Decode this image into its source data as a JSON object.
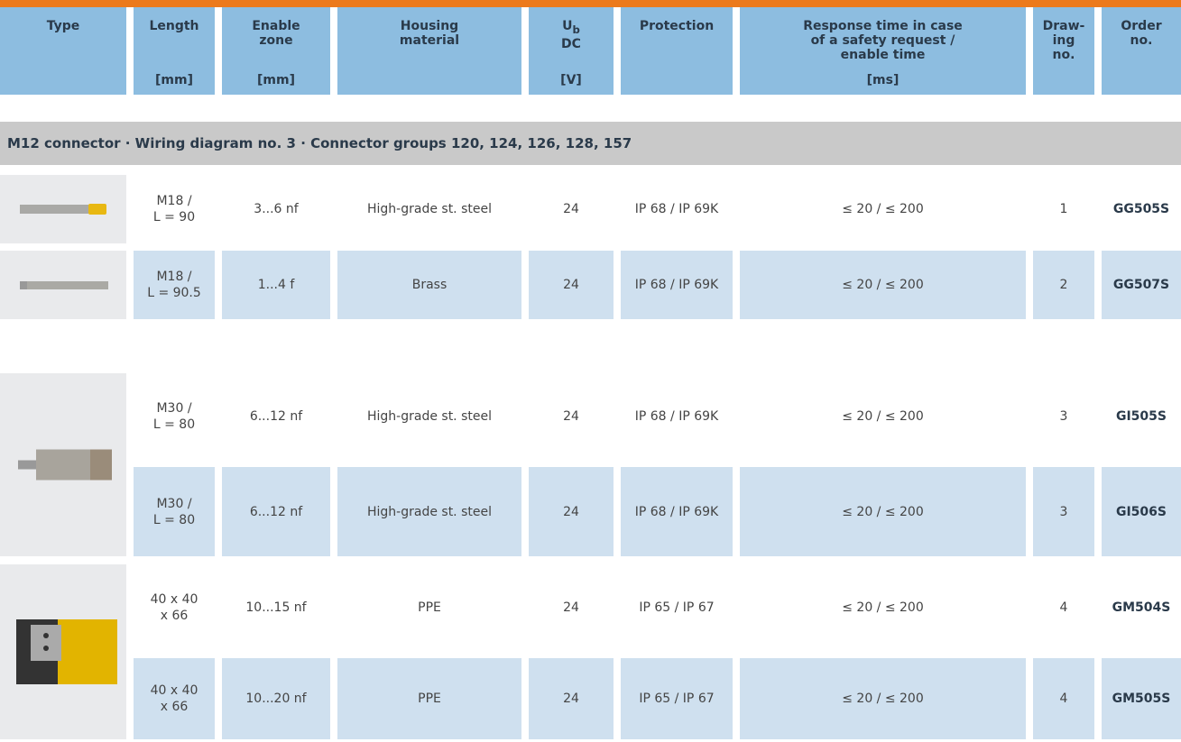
{
  "header": {
    "columns": [
      {
        "label": "Type"
      },
      {
        "label": "Length",
        "unit": "[mm]"
      },
      {
        "label": "Enable\nzone",
        "unit": "[mm]"
      },
      {
        "label": "Housing\nmaterial"
      },
      {
        "symbol": "U",
        "sub": "b",
        "label": "DC",
        "unit": "[V]"
      },
      {
        "label": "Protection"
      },
      {
        "label": "Response time in case\nof a safety request /\nenable time",
        "unit": "[ms]"
      },
      {
        "label": "Draw-\ning\nno."
      },
      {
        "label": "Order\nno."
      }
    ]
  },
  "section": {
    "title": "M12 connector · Wiring diagram no. 3 · Connector groups 120, 124, 126, 128, 157"
  },
  "table": {
    "rows": [
      [
        "M18 /\nL = 90",
        "3...6 nf",
        "High-grade st. steel",
        "24",
        "IP 68 / IP 69K",
        "≤ 20 / ≤ 200",
        "1",
        "GG505S"
      ],
      [
        "M18 /\nL = 90.5",
        "1...4 f",
        "Brass",
        "24",
        "IP 68 / IP 69K",
        "≤ 20 / ≤ 200",
        "2",
        "GG507S"
      ],
      [
        "M30 /\nL = 80",
        "6...12 nf",
        "High-grade st. steel",
        "24",
        "IP 68 / IP 69K",
        "≤ 20 / ≤ 200",
        "3",
        "GI505S"
      ],
      [
        "M30 /\nL = 80",
        "6...12 nf",
        "High-grade st. steel",
        "24",
        "IP 68 / IP 69K",
        "≤ 20 / ≤ 200",
        "3",
        "GI506S"
      ],
      [
        "40 x 40\nx 66",
        "10...15 nf",
        "PPE",
        "24",
        "IP 65 / IP 67",
        "≤ 20 / ≤ 200",
        "4",
        "GM504S"
      ],
      [
        "40 x 40\nx 66",
        "10...20 nf",
        "PPE",
        "24",
        "IP 65 / IP 67",
        "≤ 20 / ≤ 200",
        "4",
        "GM505S"
      ]
    ]
  }
}
